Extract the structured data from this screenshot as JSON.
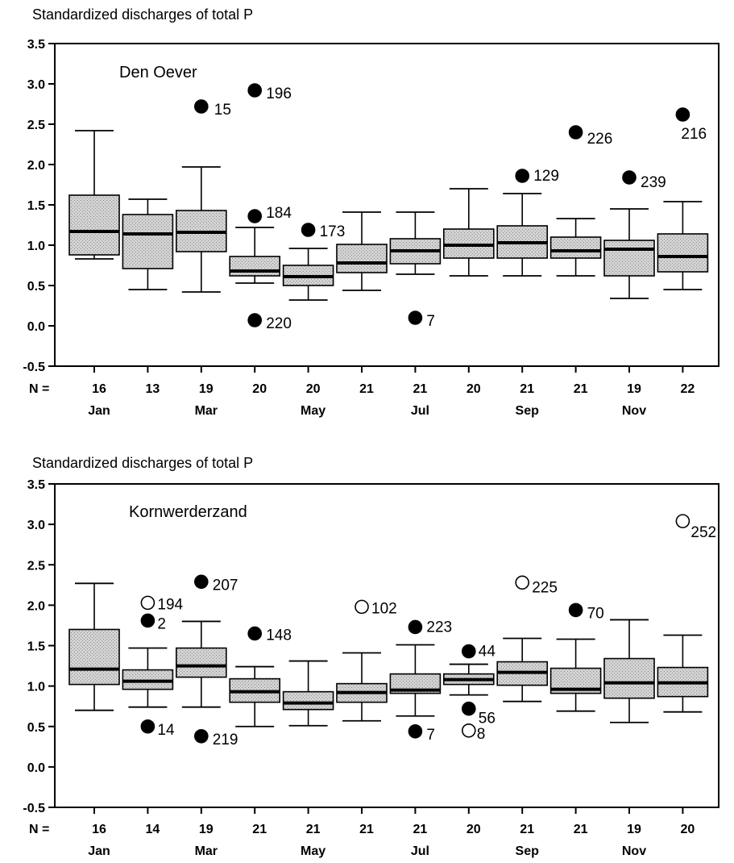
{
  "chart_data": [
    {
      "type": "box",
      "title": "Standardized discharges of total P",
      "panel_label": "Den Oever",
      "ylim": [
        -0.5,
        3.5
      ],
      "yticks": [
        "3.5",
        "3.0",
        "2.5",
        "2.0",
        "1.5",
        "1.0",
        "0.5",
        "0.0",
        "-0.5"
      ],
      "n_prefix": "N =",
      "categories": [
        "Jan",
        "",
        "Mar",
        "",
        "May",
        "",
        "Jul",
        "",
        "Sep",
        "",
        "Nov",
        ""
      ],
      "n": [
        "16",
        "13",
        "19",
        "20",
        "20",
        "21",
        "21",
        "20",
        "21",
        "21",
        "19",
        "22"
      ],
      "boxes": [
        {
          "whisker_low": 0.83,
          "q1": 0.88,
          "median": 1.17,
          "q3": 1.62,
          "whisker_high": 2.42
        },
        {
          "whisker_low": 0.45,
          "q1": 0.71,
          "median": 1.14,
          "q3": 1.38,
          "whisker_high": 1.57
        },
        {
          "whisker_low": 0.42,
          "q1": 0.92,
          "median": 1.16,
          "q3": 1.43,
          "whisker_high": 1.97
        },
        {
          "whisker_low": 0.53,
          "q1": 0.62,
          "median": 0.68,
          "q3": 0.86,
          "whisker_high": 1.22
        },
        {
          "whisker_low": 0.32,
          "q1": 0.5,
          "median": 0.61,
          "q3": 0.75,
          "whisker_high": 0.96
        },
        {
          "whisker_low": 0.44,
          "q1": 0.66,
          "median": 0.78,
          "q3": 1.01,
          "whisker_high": 1.41
        },
        {
          "whisker_low": 0.64,
          "q1": 0.77,
          "median": 0.93,
          "q3": 1.08,
          "whisker_high": 1.41
        },
        {
          "whisker_low": 0.62,
          "q1": 0.84,
          "median": 1.0,
          "q3": 1.2,
          "whisker_high": 1.7
        },
        {
          "whisker_low": 0.62,
          "q1": 0.84,
          "median": 1.03,
          "q3": 1.24,
          "whisker_high": 1.64
        },
        {
          "whisker_low": 0.62,
          "q1": 0.84,
          "median": 0.93,
          "q3": 1.1,
          "whisker_high": 1.33
        },
        {
          "whisker_low": 0.34,
          "q1": 0.62,
          "median": 0.95,
          "q3": 1.06,
          "whisker_high": 1.45
        },
        {
          "whisker_low": 0.45,
          "q1": 0.67,
          "median": 0.86,
          "q3": 1.14,
          "whisker_high": 1.54
        }
      ],
      "outliers": [
        {
          "box": 2,
          "y": 2.72,
          "label": "15",
          "filled": true,
          "lx": 16,
          "ly": 10
        },
        {
          "box": 3,
          "y": 2.92,
          "label": "196",
          "filled": true,
          "lx": 14,
          "ly": 10
        },
        {
          "box": 3,
          "y": 1.36,
          "label": "184",
          "filled": true,
          "lx": 14,
          "ly": 2
        },
        {
          "box": 3,
          "y": 0.07,
          "label": "220",
          "filled": true,
          "lx": 14,
          "ly": 10
        },
        {
          "box": 4,
          "y": 1.19,
          "label": "173",
          "filled": true,
          "lx": 14,
          "ly": 8
        },
        {
          "box": 6,
          "y": 0.1,
          "label": "7",
          "filled": true,
          "lx": 14,
          "ly": 10
        },
        {
          "box": 8,
          "y": 1.86,
          "label": "129",
          "filled": true,
          "lx": 14,
          "ly": 6
        },
        {
          "box": 9,
          "y": 2.4,
          "label": "226",
          "filled": true,
          "lx": 14,
          "ly": 14
        },
        {
          "box": 10,
          "y": 1.84,
          "label": "239",
          "filled": true,
          "lx": 14,
          "ly": 12
        },
        {
          "box": 11,
          "y": 2.62,
          "label": "216",
          "filled": true,
          "lx": -2,
          "ly": 30
        }
      ]
    },
    {
      "type": "box",
      "title": "Standardized discharges of total P",
      "panel_label": "Kornwerderzand",
      "ylim": [
        -0.5,
        3.5
      ],
      "yticks": [
        "3.5",
        "3.0",
        "2.5",
        "2.0",
        "1.5",
        "1.0",
        "0.5",
        "0.0",
        "-0.5"
      ],
      "n_prefix": "N =",
      "categories": [
        "Jan",
        "",
        "Mar",
        "",
        "May",
        "",
        "Jul",
        "",
        "Sep",
        "",
        "Nov",
        ""
      ],
      "n": [
        "16",
        "14",
        "19",
        "21",
        "21",
        "21",
        "21",
        "20",
        "21",
        "21",
        "19",
        "20"
      ],
      "boxes": [
        {
          "whisker_low": 0.7,
          "q1": 1.02,
          "median": 1.21,
          "q3": 1.7,
          "whisker_high": 2.27
        },
        {
          "whisker_low": 0.74,
          "q1": 0.96,
          "median": 1.06,
          "q3": 1.2,
          "whisker_high": 1.47
        },
        {
          "whisker_low": 0.74,
          "q1": 1.11,
          "median": 1.25,
          "q3": 1.47,
          "whisker_high": 1.8
        },
        {
          "whisker_low": 0.5,
          "q1": 0.8,
          "median": 0.93,
          "q3": 1.09,
          "whisker_high": 1.24
        },
        {
          "whisker_low": 0.51,
          "q1": 0.71,
          "median": 0.79,
          "q3": 0.93,
          "whisker_high": 1.31
        },
        {
          "whisker_low": 0.57,
          "q1": 0.8,
          "median": 0.92,
          "q3": 1.03,
          "whisker_high": 1.41
        },
        {
          "whisker_low": 0.63,
          "q1": 0.91,
          "median": 0.95,
          "q3": 1.15,
          "whisker_high": 1.51
        },
        {
          "whisker_low": 0.89,
          "q1": 1.02,
          "median": 1.08,
          "q3": 1.15,
          "whisker_high": 1.27
        },
        {
          "whisker_low": 0.81,
          "q1": 1.01,
          "median": 1.17,
          "q3": 1.3,
          "whisker_high": 1.59
        },
        {
          "whisker_low": 0.69,
          "q1": 0.91,
          "median": 0.96,
          "q3": 1.22,
          "whisker_high": 1.58
        },
        {
          "whisker_low": 0.55,
          "q1": 0.85,
          "median": 1.04,
          "q3": 1.34,
          "whisker_high": 1.82
        },
        {
          "whisker_low": 0.68,
          "q1": 0.87,
          "median": 1.04,
          "q3": 1.23,
          "whisker_high": 1.63
        }
      ],
      "outliers": [
        {
          "box": 1,
          "y": 2.03,
          "label": "194",
          "filled": false,
          "lx": 12,
          "ly": 8
        },
        {
          "box": 1,
          "y": 1.81,
          "label": "2",
          "filled": true,
          "lx": 12,
          "ly": 10
        },
        {
          "box": 1,
          "y": 0.5,
          "label": "14",
          "filled": true,
          "lx": 12,
          "ly": 10
        },
        {
          "box": 2,
          "y": 2.29,
          "label": "207",
          "filled": true,
          "lx": 14,
          "ly": 10
        },
        {
          "box": 2,
          "y": 0.38,
          "label": "219",
          "filled": true,
          "lx": 14,
          "ly": 10
        },
        {
          "box": 3,
          "y": 1.65,
          "label": "148",
          "filled": true,
          "lx": 14,
          "ly": 8
        },
        {
          "box": 5,
          "y": 1.98,
          "label": "102",
          "filled": false,
          "lx": 12,
          "ly": 8
        },
        {
          "box": 6,
          "y": 1.73,
          "label": "223",
          "filled": true,
          "lx": 14,
          "ly": 6
        },
        {
          "box": 6,
          "y": 0.44,
          "label": "7",
          "filled": true,
          "lx": 14,
          "ly": 10
        },
        {
          "box": 7,
          "y": 1.43,
          "label": "44",
          "filled": true,
          "lx": 12,
          "ly": 6
        },
        {
          "box": 7,
          "y": 0.72,
          "label": "56",
          "filled": true,
          "lx": 12,
          "ly": 18
        },
        {
          "box": 7,
          "y": 0.45,
          "label": "8",
          "filled": false,
          "lx": 10,
          "ly": 10
        },
        {
          "box": 8,
          "y": 2.28,
          "label": "225",
          "filled": false,
          "lx": 12,
          "ly": 12
        },
        {
          "box": 9,
          "y": 1.94,
          "label": "70",
          "filled": true,
          "lx": 14,
          "ly": 10
        },
        {
          "box": 11,
          "y": 3.04,
          "label": "252",
          "filled": false,
          "lx": 10,
          "ly": 20
        }
      ]
    }
  ]
}
